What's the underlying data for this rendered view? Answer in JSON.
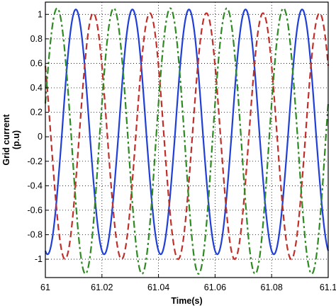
{
  "chart_data": {
    "type": "line",
    "xlabel": "Time(s)",
    "ylabel": "Grid current",
    "ylabel_unit": "(p.u)",
    "xlim": [
      61,
      61.1
    ],
    "ylim": [
      -1.15,
      1.1
    ],
    "x_ticks": [
      "61",
      "61.02",
      "61.04",
      "61.06",
      "61.08",
      "61.1"
    ],
    "x_tick_values": [
      61,
      61.02,
      61.04,
      61.06,
      61.08,
      61.1
    ],
    "y_ticks": [
      "-1",
      "-0.8",
      "-0.6",
      "-0.4",
      "-0.2",
      "0",
      "0.2",
      "0.4",
      "0.6",
      "0.8",
      "1"
    ],
    "y_tick_values": [
      -1,
      -0.8,
      -0.6,
      -0.4,
      -0.2,
      0,
      0.2,
      0.4,
      0.6,
      0.8,
      1
    ],
    "grid": true,
    "series": [
      {
        "color": "#1f3fd8",
        "style": "solid",
        "period_s": 0.02,
        "phase_deg": -104,
        "peak_positive": 1.04,
        "peak_negative": -0.96
      },
      {
        "color": "#c0302a",
        "style": "dashed",
        "period_s": 0.02,
        "phase_deg": 145,
        "peak_positive": 1.01,
        "peak_negative": -1.0
      },
      {
        "color": "#2e8b22",
        "style": "dashdot",
        "period_s": 0.02,
        "phase_deg": 15,
        "peak_positive": 1.05,
        "peak_negative": -1.12
      }
    ]
  }
}
